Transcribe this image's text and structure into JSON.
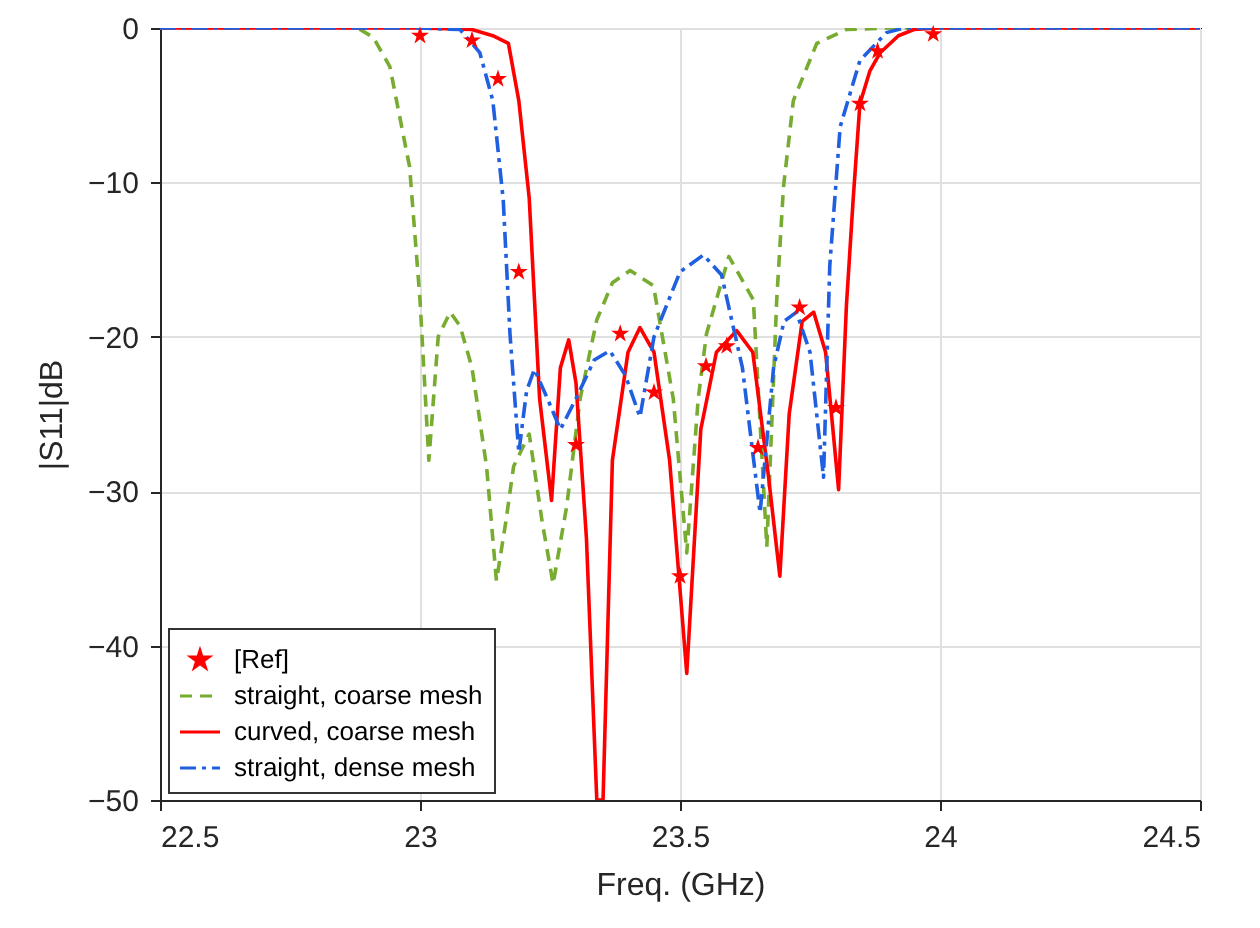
{
  "chart_data": {
    "type": "line",
    "xlabel": "Freq. (GHz)",
    "ylabel": "|S11|dB",
    "xlim": [
      22.5,
      24.5
    ],
    "xticks": [
      22.5,
      23,
      23.5,
      24,
      24.5
    ],
    "ylim": [
      -50,
      0
    ],
    "yticks": [
      -50,
      -40,
      -30,
      -20,
      -10,
      0
    ],
    "grid": true,
    "legend": "bottom left",
    "series": [
      {
        "name": "[Ref]",
        "type": "scatter",
        "marker": "star",
        "color": "#ff0000",
        "x": [
          23.0,
          23.1,
          23.15,
          23.19,
          23.3,
          23.385,
          23.45,
          23.5,
          23.55,
          23.59,
          23.65,
          23.73,
          23.8,
          23.846,
          23.88,
          23.987
        ],
        "values": [
          -0.5,
          -0.8,
          -3.3,
          -15.8,
          -27,
          -19.8,
          -23.6,
          -35.5,
          -21.9,
          -20.6,
          -27.2,
          -18.1,
          -24.6,
          -4.9,
          -1.5,
          -0.4
        ]
      },
      {
        "name": "straight, coarse mesh",
        "type": "line",
        "line_style": "dashed",
        "color": "#77ac30",
        "x": [
          22.5,
          22.88,
          22.91,
          22.942,
          22.98,
          23.0,
          23.017,
          23.035,
          23.058,
          23.077,
          23.1,
          23.128,
          23.147,
          23.165,
          23.18,
          23.21,
          23.235,
          23.256,
          23.282,
          23.308,
          23.34,
          23.37,
          23.404,
          23.449,
          23.487,
          23.513,
          23.535,
          23.551,
          23.594,
          23.641,
          23.667,
          23.686,
          23.699,
          23.718,
          23.763,
          23.82,
          23.9,
          24.5
        ],
        "values": [
          0,
          0,
          -0.6,
          -2.5,
          -9,
          -17.6,
          -28,
          -20,
          -18.4,
          -19.3,
          -22,
          -28.4,
          -35.8,
          -32,
          -28.4,
          -26.3,
          -32,
          -36,
          -31,
          -24,
          -18.9,
          -16.5,
          -15.7,
          -16.7,
          -24,
          -34,
          -24,
          -19.8,
          -14.8,
          -17.6,
          -33.6,
          -17.6,
          -10.3,
          -4.7,
          -1,
          -0.1,
          0,
          0
        ]
      },
      {
        "name": "curved, coarse mesh",
        "type": "line",
        "line_style": "solid",
        "color": "#ff0000",
        "x": [
          22.5,
          23.0,
          23.1,
          23.14,
          23.17,
          23.19,
          23.21,
          23.23,
          23.253,
          23.27,
          23.286,
          23.3,
          23.32,
          23.34,
          23.352,
          23.37,
          23.4,
          23.423,
          23.45,
          23.48,
          23.513,
          23.54,
          23.57,
          23.609,
          23.64,
          23.67,
          23.692,
          23.71,
          23.735,
          23.757,
          23.78,
          23.805,
          23.82,
          23.833,
          23.846,
          23.865,
          23.885,
          23.92,
          23.95,
          24.0,
          24.5
        ],
        "values": [
          0,
          0,
          -0.1,
          -0.5,
          -1,
          -4.7,
          -11,
          -24,
          -30.6,
          -22,
          -20.2,
          -23,
          -33,
          -50,
          -50,
          -28,
          -21,
          -19.4,
          -21,
          -28,
          -41.8,
          -26,
          -21,
          -19.6,
          -21,
          -29,
          -35.5,
          -25,
          -19,
          -18.4,
          -21,
          -29.9,
          -18,
          -11.1,
          -4.9,
          -2.8,
          -1.6,
          -0.5,
          -0.1,
          0,
          0
        ]
      },
      {
        "name": "straight, dense mesh",
        "type": "line",
        "line_style": "dashdot",
        "color": "#1f5fe0",
        "x": [
          22.5,
          23.0,
          23.077,
          23.115,
          23.14,
          23.16,
          23.173,
          23.19,
          23.205,
          23.22,
          23.245,
          23.27,
          23.3,
          23.335,
          23.365,
          23.395,
          23.423,
          23.45,
          23.5,
          23.545,
          23.58,
          23.62,
          23.654,
          23.68,
          23.7,
          23.724,
          23.75,
          23.776,
          23.788,
          23.808,
          23.846,
          23.897,
          23.93,
          24.5
        ],
        "values": [
          0,
          0,
          -0.1,
          -1.6,
          -4.7,
          -11.1,
          -19.8,
          -27.5,
          -23.5,
          -22.1,
          -24,
          -26,
          -24,
          -21.5,
          -20.9,
          -22.5,
          -25.2,
          -20,
          -15.8,
          -14.7,
          -16,
          -22,
          -31.4,
          -22,
          -19,
          -18.4,
          -21,
          -29.1,
          -15.4,
          -6.4,
          -2.1,
          -0.3,
          0,
          0
        ]
      }
    ]
  }
}
